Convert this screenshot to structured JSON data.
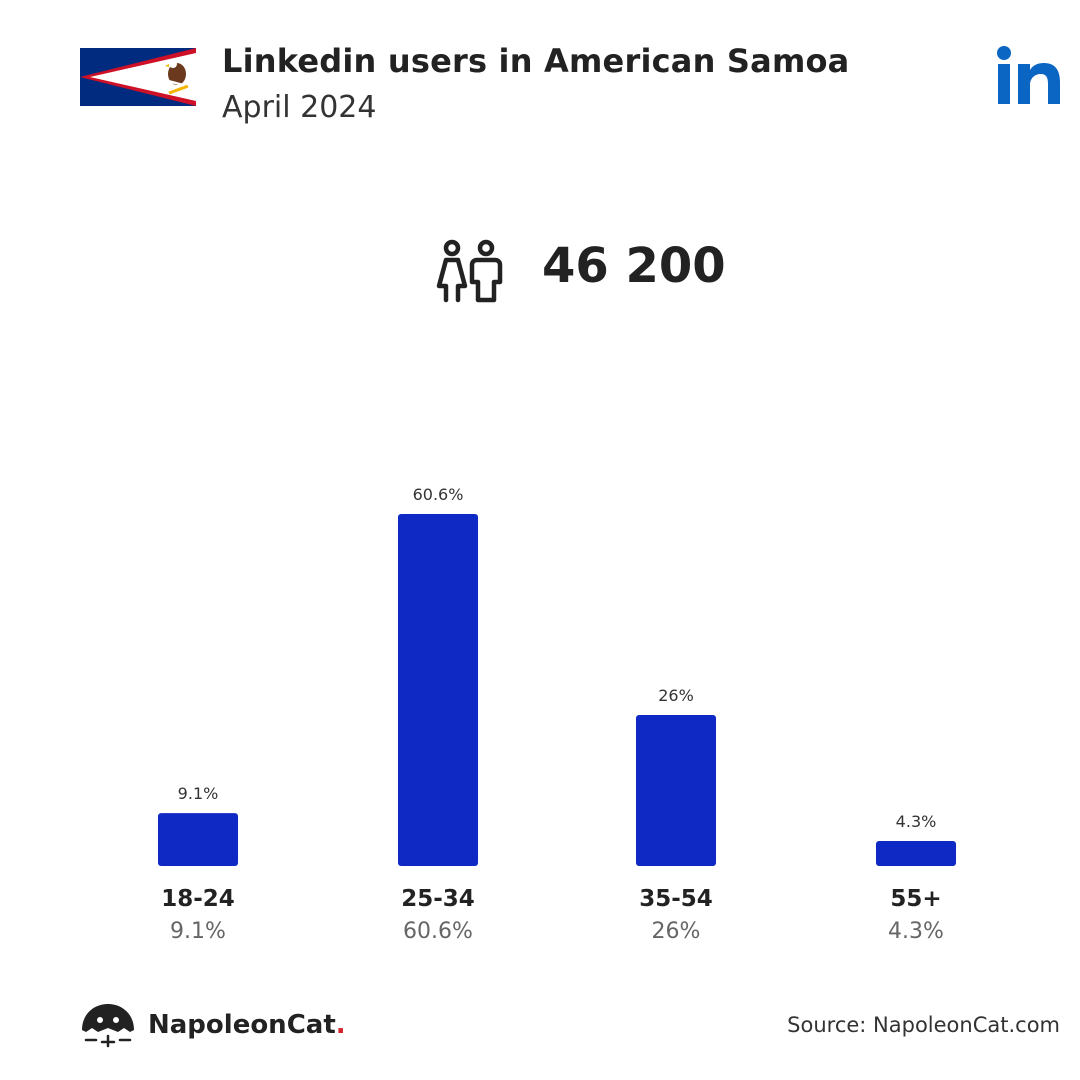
{
  "header": {
    "title": "Linkedin users in American Samoa",
    "subtitle": "April 2024",
    "flag_icon": "american-samoa-flag",
    "platform_icon": "linkedin-icon"
  },
  "summary": {
    "icon": "users-icon",
    "total_users": "46 200"
  },
  "chart_data": {
    "type": "bar",
    "categories": [
      "18-24",
      "25-34",
      "35-54",
      "55+"
    ],
    "values": [
      9.1,
      60.6,
      26,
      4.3
    ],
    "value_labels": [
      "9.1%",
      "60.6%",
      "26%",
      "4.3%"
    ],
    "title": "",
    "xlabel": "",
    "ylabel": "",
    "grid": false,
    "bar_color": "#0f2ac4"
  },
  "footer": {
    "brand_name": "NapoleonCat",
    "brand_dot": ".",
    "source": "Source: NapoleonCat.com"
  },
  "colors": {
    "accent": "#0f2ac4",
    "linkedin_blue": "#0a66c2",
    "brand_red": "#d2232a"
  }
}
